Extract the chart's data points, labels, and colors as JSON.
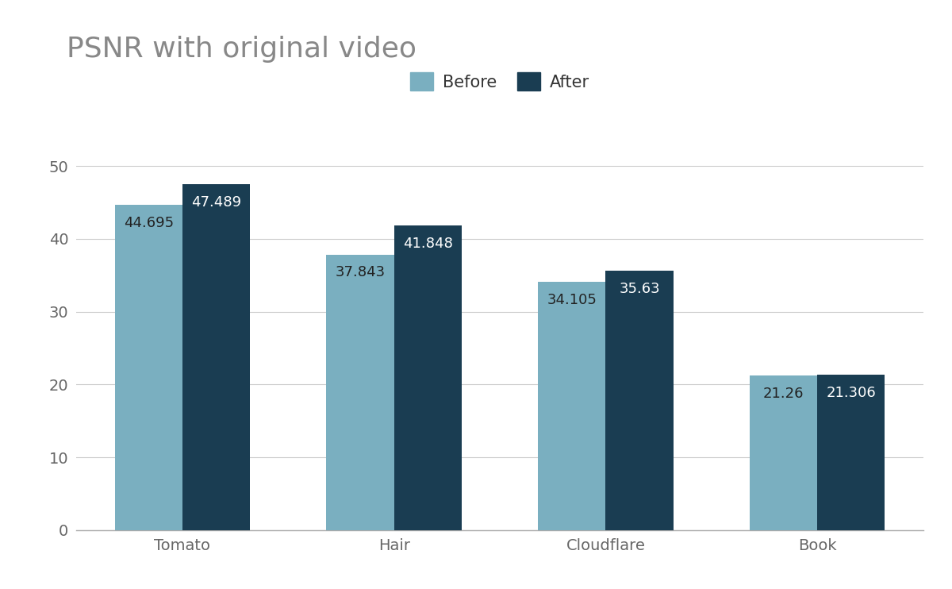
{
  "title": "PSNR with original video",
  "categories": [
    "Tomato",
    "Hair",
    "Cloudflare",
    "Book"
  ],
  "before_values": [
    44.695,
    37.843,
    34.105,
    21.26
  ],
  "after_values": [
    47.489,
    41.848,
    35.63,
    21.306
  ],
  "before_color": "#7aafc0",
  "after_color": "#1a3d52",
  "title_color": "#888888",
  "label_color_before": "#222222",
  "label_color_after": "#ffffff",
  "legend_labels": [
    "Before",
    "After"
  ],
  "legend_text_color": "#333333",
  "ylim": [
    0,
    55
  ],
  "yticks": [
    0,
    10,
    20,
    30,
    40,
    50
  ],
  "bar_width": 0.32,
  "title_fontsize": 26,
  "tick_fontsize": 14,
  "legend_fontsize": 15,
  "label_fontsize": 13,
  "background_color": "#ffffff",
  "grid_color": "#cccccc"
}
